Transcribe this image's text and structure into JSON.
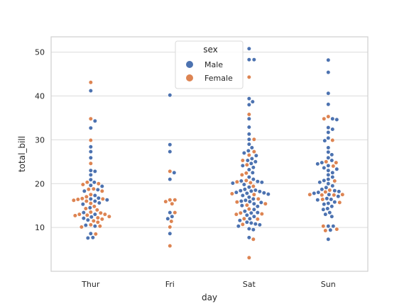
{
  "chart_data": {
    "type": "scatter",
    "subtype": "swarm",
    "title": "",
    "xlabel": "day",
    "ylabel": "total_bill",
    "categories": [
      "Thur",
      "Fri",
      "Sat",
      "Sun"
    ],
    "ylim": [
      0,
      53.5
    ],
    "yticks": [
      10,
      20,
      30,
      40,
      50
    ],
    "grid": "horizontal",
    "legend": {
      "title": "sex",
      "placement": "top-center"
    },
    "series": [
      {
        "name": "Male",
        "color": "#4c72b0",
        "values": {
          "Thur": [
            7.6,
            7.7,
            8.6,
            10.3,
            10.5,
            11.7,
            12.1,
            12.4,
            13.0,
            13.4,
            14.5,
            15.3,
            15.6,
            16.0,
            16.3,
            16.5,
            16.7,
            17.3,
            18.3,
            18.6,
            19.4,
            19.6,
            20.3,
            20.9,
            22.0,
            22.8,
            23.0,
            25.9,
            27.3,
            28.4,
            32.7,
            34.3,
            41.2
          ],
          "Fri": [
            8.6,
            12.0,
            12.5,
            13.4,
            21.0,
            22.5,
            27.3,
            28.9,
            40.2
          ],
          "Sat": [
            7.7,
            9.5,
            9.7,
            10.3,
            10.6,
            10.8,
            11.0,
            11.2,
            11.6,
            12.0,
            12.5,
            12.8,
            13.3,
            13.4,
            13.7,
            14.1,
            14.8,
            15.0,
            15.4,
            15.7,
            15.9,
            16.0,
            16.2,
            16.5,
            16.9,
            17.3,
            17.6,
            17.8,
            17.9,
            18.0,
            18.2,
            18.3,
            18.4,
            18.5,
            18.7,
            19.2,
            19.8,
            20.1,
            20.3,
            20.5,
            20.6,
            21.0,
            21.5,
            22.5,
            23.2,
            23.7,
            24.1,
            24.6,
            25.0,
            25.3,
            25.7,
            26.4,
            27.0,
            27.5,
            28.2,
            29.0,
            30.1,
            31.3,
            32.9,
            34.8,
            38.0,
            38.7,
            39.4,
            48.3,
            48.3,
            50.8
          ],
          "Sun": [
            7.3,
            9.4,
            10.3,
            10.3,
            12.5,
            13.0,
            13.4,
            14.1,
            14.3,
            14.8,
            15.3,
            15.5,
            15.8,
            16.3,
            16.4,
            16.6,
            17.1,
            17.5,
            17.8,
            18.0,
            18.2,
            18.4,
            18.7,
            19.1,
            19.5,
            20.0,
            20.3,
            20.7,
            21.0,
            21.5,
            22.0,
            22.5,
            23.0,
            23.3,
            23.6,
            24.1,
            24.5,
            24.8,
            25.3,
            25.9,
            26.6,
            27.2,
            28.2,
            29.8,
            30.4,
            31.7,
            32.4,
            32.8,
            34.6,
            34.8,
            38.1,
            40.6,
            45.4,
            48.2
          ]
        }
      },
      {
        "name": "Female",
        "color": "#dd8452",
        "values": {
          "Thur": [
            8.5,
            10.1,
            10.3,
            10.6,
            11.2,
            11.5,
            11.9,
            12.2,
            12.5,
            12.7,
            12.8,
            13.0,
            13.0,
            13.3,
            13.5,
            14.0,
            14.3,
            14.8,
            15.5,
            16.0,
            16.2,
            16.4,
            16.5,
            16.6,
            17.0,
            17.5,
            18.3,
            18.7,
            18.8,
            19.8,
            20.0,
            20.3,
            24.6,
            29.9,
            34.8,
            43.1
          ],
          "Fri": [
            5.8,
            10.1,
            11.4,
            13.4,
            15.4,
            15.9,
            16.3,
            16.3,
            22.8
          ],
          "Sat": [
            3.1,
            7.3,
            10.7,
            11.9,
            12.0,
            13.0,
            13.1,
            13.3,
            14.2,
            15.1,
            15.4,
            15.8,
            16.5,
            17.5,
            17.7,
            19.4,
            20.2,
            20.4,
            20.7,
            22.0,
            22.4,
            24.3,
            25.3,
            26.5,
            27.3,
            30.1,
            35.8,
            44.3
          ],
          "Sun": [
            9.3,
            9.6,
            10.3,
            15.7,
            16.4,
            17.4,
            17.4,
            17.5,
            17.5,
            18.1,
            18.5,
            20.6,
            24.0,
            24.8,
            25.0,
            29.9,
            34.8,
            35.3
          ]
        }
      }
    ]
  }
}
